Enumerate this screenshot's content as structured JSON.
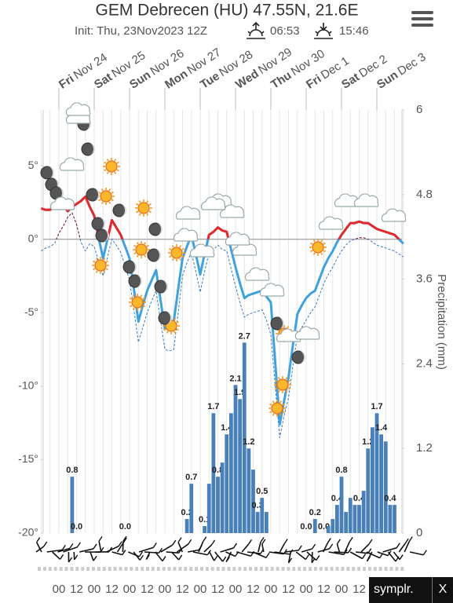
{
  "header": {
    "title": "GEM Debrecen (HU) 47.55N, 21.6E",
    "init": "Init: Thu, 23Nov2023 12Z",
    "sunrise": "06:53",
    "sunset": "15:46"
  },
  "chart_data": {
    "type": "line",
    "days": [
      {
        "weekday": "Fri",
        "date": "Nov 24"
      },
      {
        "weekday": "Sat",
        "date": "Nov 25"
      },
      {
        "weekday": "Sun",
        "date": "Nov 26"
      },
      {
        "weekday": "Mon",
        "date": "Nov 27"
      },
      {
        "weekday": "Tue",
        "date": "Nov 28"
      },
      {
        "weekday": "Wed",
        "date": "Nov 29"
      },
      {
        "weekday": "Thu",
        "date": "Nov 30"
      },
      {
        "weekday": "Fri",
        "date": "Dec 1"
      },
      {
        "weekday": "Sat",
        "date": "Dec 2"
      },
      {
        "weekday": "Sun",
        "date": "Dec 3"
      }
    ],
    "categories": [
      null,
      null,
      null,
      null,
      "00",
      null,
      null,
      null,
      "12",
      null,
      null,
      null,
      "00",
      null,
      null,
      null,
      "12",
      null,
      null,
      null,
      "00",
      null,
      null,
      null,
      "12",
      null,
      null,
      null,
      "00",
      null,
      null,
      null,
      "12",
      null,
      null,
      null,
      "00",
      null,
      null,
      null,
      "12",
      null,
      null,
      null,
      "00",
      null,
      null,
      null,
      "12",
      null,
      null,
      null,
      "00",
      null,
      null,
      null,
      "12",
      null,
      null,
      null,
      "00",
      null,
      null,
      null,
      "12",
      null,
      null,
      null,
      "00",
      null,
      null,
      null,
      "12",
      null,
      null,
      null,
      null,
      null,
      null,
      null,
      null,
      null,
      null
    ],
    "series": [
      {
        "type": "line",
        "color": "#3fa2df",
        "warm_color": "#e32b2b",
        "values": [
          2.1,
          2.0,
          2.0,
          2.3,
          2.7,
          2.3,
          1.9,
          2.2,
          2.4,
          2.6,
          2.9,
          2.2,
          1.6,
          0.1,
          -1.3,
          0.0,
          1.3,
          0.8,
          0.3,
          -0.5,
          -1.3,
          -3.4,
          -5.6,
          -4.5,
          -3.5,
          -2.8,
          -2.1,
          -4.1,
          -6.1,
          -5.8,
          -5.6,
          -3.4,
          -1.3,
          -0.5,
          0.3,
          -1.0,
          -2.4,
          -1.0,
          0.3,
          0.5,
          0.8,
          0.6,
          0.5,
          -0.7,
          -1.9,
          -3.0,
          -4.0,
          -3.8,
          -3.7,
          -3.6,
          -3.5,
          -3.9,
          -4.3,
          -8.4,
          -12.6,
          -11.0,
          -9.4,
          -7.2,
          -5.1,
          -4.5,
          -4.0,
          -3.7,
          -3.5,
          -2.7,
          -1.9,
          -1.3,
          -0.8,
          -0.2,
          0.3,
          0.7,
          1.1,
          1.1,
          1.2,
          1.1,
          1.1,
          0.9,
          0.7,
          0.6,
          0.5,
          0.4,
          0.3,
          0.0,
          -0.3
        ]
      },
      {
        "type": "line",
        "dashed": true,
        "color": "#3a78c0",
        "warm_color": "#8b1a1a",
        "values": [
          -0.8,
          -0.6,
          -0.5,
          -0.3,
          0.4,
          0.9,
          1.5,
          1.8,
          1.0,
          -0.2,
          -0.8,
          -0.3,
          -0.5,
          -1.5,
          -2.5,
          -1.2,
          0.0,
          -0.4,
          -0.9,
          -1.8,
          -2.8,
          -4.8,
          -7.0,
          -6.0,
          -5.0,
          -4.2,
          -3.5,
          -5.5,
          -7.5,
          -7.6,
          -7.5,
          -5.0,
          -2.5,
          -1.6,
          -0.9,
          -2.2,
          -3.6,
          -2.2,
          -0.9,
          -0.7,
          -0.4,
          -0.7,
          -0.8,
          -2.0,
          -3.2,
          -4.3,
          -5.3,
          -5.1,
          -5.0,
          -4.9,
          -4.8,
          -5.5,
          -6.5,
          -10.0,
          -13.5,
          -12.0,
          -10.8,
          -8.6,
          -6.5,
          -6.0,
          -5.5,
          -5.0,
          -4.6,
          -3.8,
          -3.0,
          -2.4,
          -1.9,
          -1.3,
          -0.8,
          -0.4,
          -0.1,
          0.0,
          0.1,
          0.1,
          0.0,
          -0.2,
          -0.4,
          -0.5,
          -0.6,
          -0.7,
          -0.8,
          -1.0,
          -1.2
        ]
      },
      {
        "type": "bar",
        "axis": "y2",
        "color": "#4a80b8",
        "values": [
          0,
          0,
          0,
          0,
          0,
          0,
          0,
          0.8,
          0,
          0,
          0,
          0,
          0,
          0,
          0,
          0,
          0,
          0,
          0,
          0,
          0,
          0,
          0,
          0,
          0,
          0,
          0,
          0,
          0,
          0,
          0,
          0,
          0,
          0.2,
          0.7,
          0,
          0,
          0.1,
          0.7,
          1.7,
          0.8,
          1.0,
          1.4,
          1.7,
          2.1,
          1.9,
          2.7,
          1.2,
          0.9,
          0.3,
          0.5,
          0.3,
          0,
          0,
          0,
          0,
          0,
          0,
          0,
          0,
          0,
          0,
          0.2,
          0,
          0,
          0.1,
          0.2,
          0.4,
          0.8,
          0.3,
          0.5,
          0.4,
          0.4,
          0.6,
          1.2,
          1.5,
          1.7,
          1.4,
          1.3,
          0.4,
          0.4,
          0,
          0
        ],
        "value_labels": [
          null,
          null,
          null,
          null,
          null,
          null,
          null,
          "0.8",
          "0.0",
          null,
          null,
          null,
          null,
          null,
          null,
          null,
          null,
          null,
          null,
          "0.0",
          null,
          null,
          null,
          null,
          null,
          null,
          null,
          null,
          null,
          null,
          null,
          null,
          null,
          "0.2",
          "0.7",
          null,
          null,
          "0.1",
          null,
          "1.7",
          "0.8",
          null,
          "1.4",
          null,
          "2.1",
          "1.9",
          "2.7",
          "1.2",
          null,
          "0.3",
          "0.5",
          null,
          null,
          null,
          null,
          null,
          null,
          null,
          null,
          null,
          "0.0",
          null,
          "0.2",
          null,
          "0.0",
          null,
          null,
          "0.4",
          "0.8",
          null,
          null,
          null,
          "0.4",
          null,
          "1.2",
          null,
          "1.7",
          "1.4",
          null,
          "0.4",
          null,
          null,
          null
        ]
      }
    ],
    "ylim": [
      -20,
      8.8
    ],
    "yticks": [
      {
        "value": -20,
        "label": "-20°"
      },
      {
        "value": -15,
        "label": "-15°"
      },
      {
        "value": -10,
        "label": "-10°"
      },
      {
        "value": -5,
        "label": "-5°"
      },
      {
        "value": 0,
        "label": "0°"
      },
      {
        "value": 5,
        "label": "5°"
      }
    ],
    "y2lim": [
      0,
      6
    ],
    "y2ticks": [
      0,
      1.2,
      2.4,
      3.6,
      4.8,
      6
    ],
    "y2label": "Precipitation (mm)"
  },
  "ad": {
    "brand": "symplr.",
    "close": "X"
  }
}
